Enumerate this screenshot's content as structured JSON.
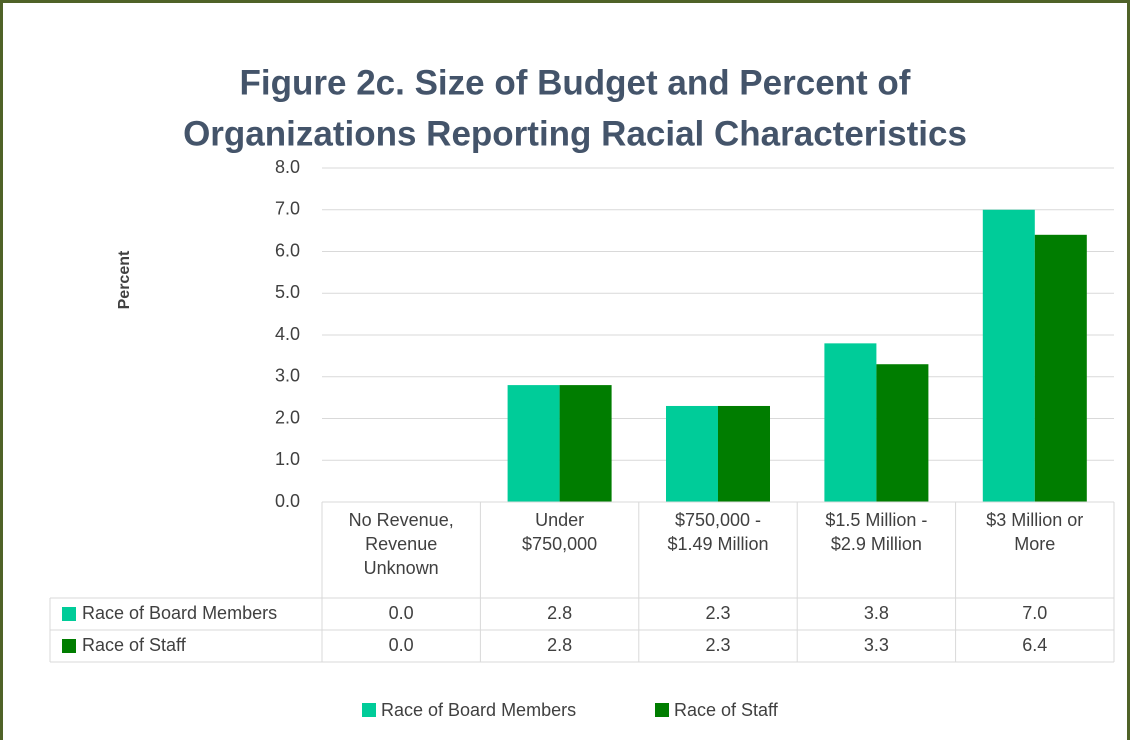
{
  "chart_data": {
    "type": "bar",
    "title": [
      "Figure 2c.  Size of Budget and Percent of",
      "Organizations Reporting Racial Characteristics"
    ],
    "y_label": "Percent",
    "categories": [
      "No Revenue, Revenue Unknown",
      "Under $750,000",
      "$750,000 - $1.49 Million",
      "$1.5 Million - $2.9 Million",
      "$3 Million or More"
    ],
    "series": [
      {
        "name": "Race of Board Members",
        "color": "#00cc99",
        "values": [
          0,
          2.8,
          2.3,
          3.8,
          7
        ],
        "value_labels": [
          "0.0",
          "2.8",
          "2.3",
          "3.8",
          "7.0"
        ]
      },
      {
        "name": "Race of Staff",
        "color": "#007d00",
        "values": [
          0,
          2.8,
          2.3,
          3.3,
          6.4
        ],
        "value_labels": [
          "0.0",
          "2.8",
          "2.3",
          "3.3",
          "6.4"
        ]
      }
    ],
    "ylim": [
      0,
      8
    ],
    "yticks": [
      {
        "value": 0,
        "label": "0.0"
      },
      {
        "value": 1,
        "label": "1.0"
      },
      {
        "value": 2,
        "label": "2.0"
      },
      {
        "value": 3,
        "label": "3.0"
      },
      {
        "value": 4,
        "label": "4.0"
      },
      {
        "value": 5,
        "label": "5.0"
      },
      {
        "value": 6,
        "label": "6.0"
      },
      {
        "value": 7,
        "label": "7.0"
      },
      {
        "value": 8,
        "label": "8.0"
      }
    ],
    "grid": true,
    "legend": "bottom"
  }
}
